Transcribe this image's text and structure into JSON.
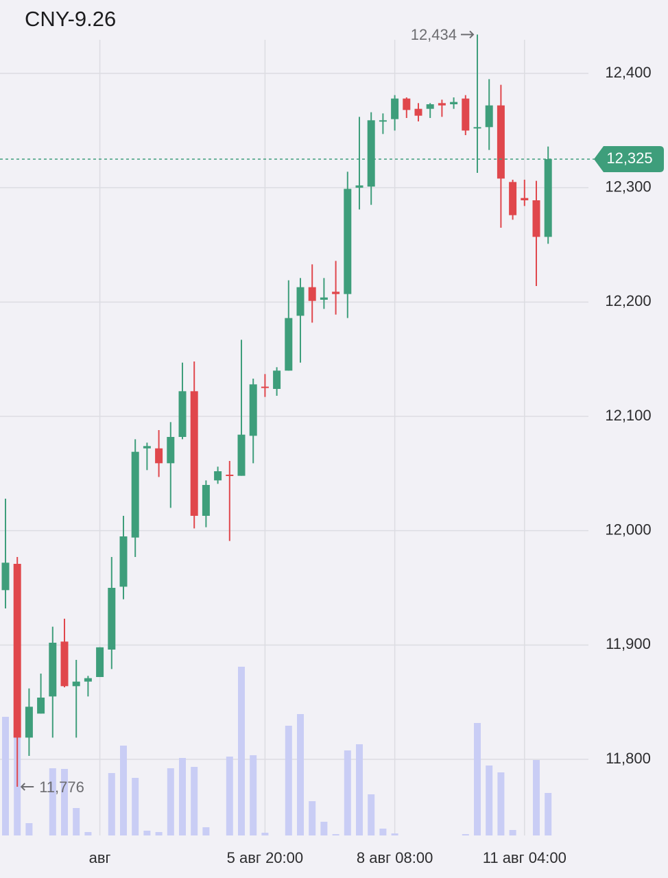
{
  "chart_data": {
    "type": "candlestick",
    "title": "CNY-9.26",
    "categories": [
      null,
      null,
      null,
      null,
      null,
      null,
      null,
      null,
      "авг",
      null,
      null,
      null,
      null,
      null,
      null,
      null,
      null,
      null,
      null,
      null,
      null,
      null,
      "5 авг 20:00",
      null,
      null,
      null,
      null,
      null,
      null,
      null,
      null,
      null,
      null,
      "8 авг 08:00",
      null,
      null,
      null,
      null,
      null,
      null,
      null,
      null,
      null,
      null,
      "11 авг 04:00",
      null,
      null
    ],
    "open": [
      11948,
      11971,
      11819,
      11840,
      11855,
      11903,
      11864,
      11868,
      11872,
      11896,
      11951,
      11994,
      12072,
      12072,
      12059,
      12082,
      12122,
      12013,
      12044,
      12049,
      12048,
      12083,
      12126,
      12124,
      12140,
      12188,
      12213,
      12202,
      12209,
      12207,
      12300,
      12301,
      12358,
      12360,
      12378,
      12369,
      12369,
      12374,
      12373,
      12378,
      12352,
      12353,
      12372,
      12305,
      12291,
      12289,
      12257
    ],
    "high": [
      12028,
      11977,
      11862,
      11875,
      11916,
      11923,
      11887,
      11873,
      11898,
      11977,
      12013,
      12080,
      12077,
      12088,
      12095,
      12147,
      12148,
      12044,
      12056,
      12061,
      12167,
      12133,
      12137,
      12143,
      12219,
      12221,
      12233,
      12221,
      12236,
      12314,
      12362,
      12366,
      12365,
      12381,
      12379,
      12374,
      12374,
      12377,
      12379,
      12381,
      12434,
      12395,
      12390,
      12307,
      12307,
      12306,
      12336
    ],
    "low": [
      11932,
      11776,
      11803,
      11840,
      11819,
      11863,
      11819,
      11855,
      11872,
      11879,
      11940,
      11977,
      12053,
      12047,
      12020,
      12080,
      12002,
      12003,
      12041,
      11991,
      12048,
      12059,
      12117,
      12118,
      12140,
      12147,
      12182,
      12194,
      12189,
      12186,
      12281,
      12285,
      12347,
      12350,
      12361,
      12358,
      12361,
      12362,
      12369,
      12346,
      12313,
      12333,
      12265,
      12272,
      12284,
      12214,
      12251
    ],
    "close": [
      11972,
      11819,
      11846,
      11854,
      11902,
      11864,
      11868,
      11871,
      11898,
      11950,
      11995,
      12069,
      12074,
      12059,
      12082,
      12122,
      12013,
      12040,
      12052,
      12048,
      12084,
      12128,
      12125,
      12140,
      12186,
      12213,
      12201,
      12204,
      12207,
      12299,
      12302,
      12359,
      12359,
      12378,
      12368,
      12363,
      12373,
      12372,
      12375,
      12350,
      12353,
      12372,
      12308,
      12276,
      12289,
      12257,
      12325
    ],
    "volume": [
      173,
      143,
      18,
      0,
      98,
      97,
      40,
      5,
      0,
      91,
      131,
      84,
      7,
      5,
      98,
      113,
      100,
      12,
      0,
      115,
      246,
      117,
      4,
      0,
      160,
      177,
      50,
      20,
      2,
      124,
      133,
      60,
      10,
      3,
      0,
      0,
      0,
      0,
      0,
      2,
      164,
      102,
      92,
      8,
      0,
      110,
      62
    ],
    "vlim": [
      0,
      300
    ],
    "up_color": "#3e9e7b",
    "down_color": "#e0474c",
    "volume_color": "#c9cdf5",
    "ylim": [
      11733.4,
      12464.2
    ],
    "yticks": [
      {
        "value": 11800,
        "label": "11,800"
      },
      {
        "value": 11900,
        "label": "11,900"
      },
      {
        "value": 12000,
        "label": "12,000"
      },
      {
        "value": 12100,
        "label": "12,100"
      },
      {
        "value": 12200,
        "label": "12,200"
      },
      {
        "value": 12300,
        "label": "12,300"
      },
      {
        "value": 12400,
        "label": "12,400"
      }
    ],
    "last": {
      "value": 12325,
      "label": "12,325"
    },
    "max_label": {
      "value": 12434,
      "label": "12,434"
    },
    "min_label": {
      "value": 11776,
      "label": "11,776"
    },
    "grid": true
  }
}
